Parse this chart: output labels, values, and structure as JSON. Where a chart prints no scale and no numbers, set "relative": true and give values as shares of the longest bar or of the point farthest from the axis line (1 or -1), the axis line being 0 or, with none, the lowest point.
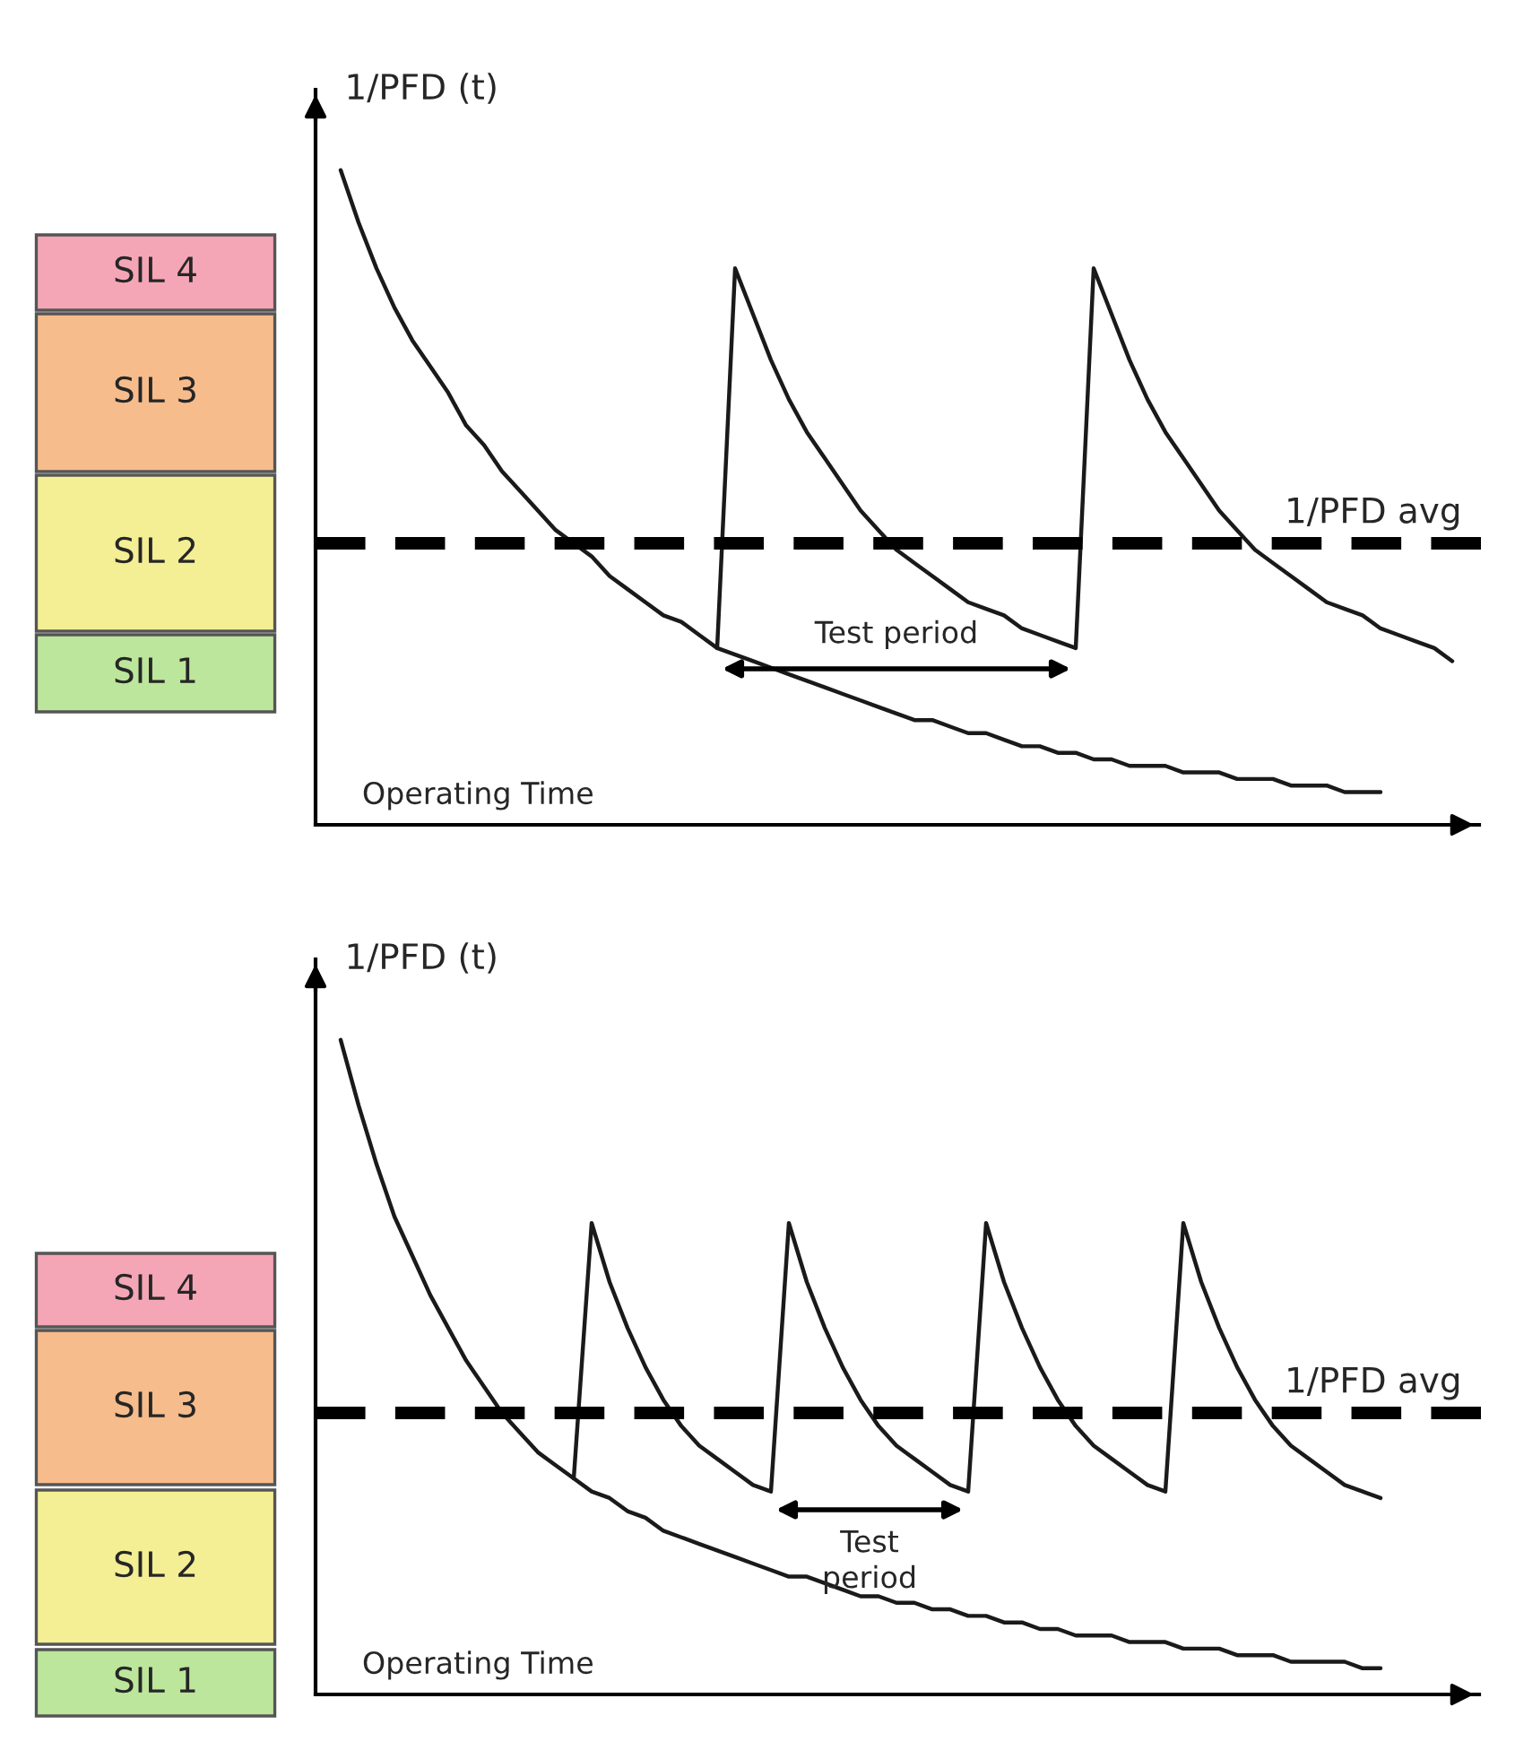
{
  "chart_data": [
    {
      "type": "line",
      "relative": true,
      "xlabel": "Operating Time",
      "ylabel": "1/PFD (t)",
      "categories": [
        null,
        null,
        null,
        null,
        null,
        null,
        null,
        null,
        null,
        null,
        null,
        null,
        null,
        null,
        null,
        null,
        null,
        null,
        null,
        null,
        null,
        null,
        null,
        null,
        null,
        null,
        null,
        null,
        null,
        null,
        null,
        null,
        null,
        null,
        null,
        null,
        null,
        null,
        null,
        null,
        null,
        null,
        null,
        null,
        null,
        null,
        null,
        null,
        null,
        null,
        null,
        null,
        null,
        null,
        null,
        null,
        null,
        null,
        null,
        null,
        null,
        null,
        null
      ],
      "series": [
        {
          "color": "#1a1a1a",
          "values": [
            1.0,
            0.92,
            0.85,
            0.79,
            0.74,
            0.7,
            0.66,
            0.61,
            0.58,
            0.54,
            0.51,
            0.48,
            0.45,
            0.43,
            0.41,
            0.38,
            0.36,
            0.34,
            0.32,
            0.31,
            0.29,
            0.27,
            0.26,
            0.25,
            0.24,
            0.23,
            0.22,
            0.21,
            0.2,
            0.19,
            0.18,
            0.17,
            0.16,
            0.16,
            0.15,
            0.14,
            0.14,
            0.13,
            0.12,
            0.12,
            0.11,
            0.11,
            0.1,
            0.1,
            0.09,
            0.09,
            0.09,
            0.08,
            0.08,
            0.08,
            0.07,
            0.07,
            0.07,
            0.06,
            0.06,
            0.06,
            0.05,
            0.05,
            0.05,
            null,
            null,
            null,
            null
          ]
        },
        {
          "color": "#1a1a1a",
          "values": [
            null,
            null,
            null,
            null,
            null,
            null,
            null,
            null,
            null,
            null,
            null,
            null,
            null,
            null,
            null,
            null,
            null,
            null,
            null,
            null,
            null,
            0.27,
            0.85,
            0.78,
            0.71,
            0.65,
            0.6,
            0.56,
            0.52,
            0.48,
            0.45,
            0.42,
            0.4,
            0.38,
            0.36,
            0.34,
            0.33,
            0.32,
            0.3,
            0.29,
            0.28,
            0.27,
            0.85,
            0.78,
            0.71,
            0.65,
            0.6,
            0.56,
            0.52,
            0.48,
            0.45,
            0.42,
            0.4,
            0.38,
            0.36,
            0.34,
            0.33,
            0.32,
            0.3,
            0.29,
            0.28,
            0.27,
            0.25
          ]
        }
      ],
      "ref_lines": [
        {
          "axis": "y",
          "value": 0.43,
          "label": "1/PFD avg",
          "line_style": "dashed",
          "color": "#000000"
        }
      ],
      "annotations": [
        "Test period",
        "SIL 4",
        "SIL 3",
        "SIL 2",
        "SIL 1"
      ]
    },
    {
      "type": "line",
      "relative": true,
      "xlabel": "Operating Time",
      "ylabel": "1/PFD (t)",
      "categories": [
        null,
        null,
        null,
        null,
        null,
        null,
        null,
        null,
        null,
        null,
        null,
        null,
        null,
        null,
        null,
        null,
        null,
        null,
        null,
        null,
        null,
        null,
        null,
        null,
        null,
        null,
        null,
        null,
        null,
        null,
        null,
        null,
        null,
        null,
        null,
        null,
        null,
        null,
        null,
        null,
        null,
        null,
        null,
        null,
        null,
        null,
        null,
        null,
        null,
        null,
        null,
        null,
        null,
        null,
        null,
        null,
        null,
        null,
        null,
        null,
        null,
        null,
        null
      ],
      "series": [
        {
          "color": "#1a1a1a",
          "values": [
            1.0,
            0.9,
            0.81,
            0.73,
            0.67,
            0.61,
            0.56,
            0.51,
            0.47,
            0.43,
            0.4,
            0.37,
            0.35,
            0.33,
            0.31,
            0.3,
            0.28,
            0.27,
            0.25,
            0.24,
            0.23,
            0.22,
            0.21,
            0.2,
            0.19,
            0.18,
            0.18,
            0.17,
            0.16,
            0.15,
            0.15,
            0.14,
            0.14,
            0.13,
            0.13,
            0.12,
            0.12,
            0.11,
            0.11,
            0.1,
            0.1,
            0.09,
            0.09,
            0.09,
            0.08,
            0.08,
            0.08,
            0.07,
            0.07,
            0.07,
            0.06,
            0.06,
            0.06,
            0.05,
            0.05,
            0.05,
            0.05,
            0.04,
            0.04,
            null,
            null,
            null,
            null
          ]
        },
        {
          "color": "#1a1a1a",
          "values": [
            null,
            null,
            null,
            null,
            null,
            null,
            null,
            null,
            null,
            null,
            null,
            null,
            null,
            0.33,
            0.72,
            0.63,
            0.56,
            0.5,
            0.45,
            0.41,
            0.38,
            0.36,
            0.34,
            0.32,
            0.31,
            0.72,
            0.63,
            0.56,
            0.5,
            0.45,
            0.41,
            0.38,
            0.36,
            0.34,
            0.32,
            0.31,
            0.72,
            0.63,
            0.56,
            0.5,
            0.45,
            0.41,
            0.38,
            0.36,
            0.34,
            0.32,
            0.31,
            0.72,
            0.63,
            0.56,
            0.5,
            0.45,
            0.41,
            0.38,
            0.36,
            0.34,
            0.32,
            0.31,
            0.3,
            null,
            null,
            null,
            null
          ]
        }
      ],
      "ref_lines": [
        {
          "axis": "y",
          "value": 0.43,
          "label": "1/PFD avg",
          "line_style": "dashed",
          "color": "#000000"
        }
      ],
      "annotations": [
        "Test\nperiod",
        "SIL 4",
        "SIL 3",
        "SIL 2",
        "SIL 1"
      ]
    }
  ]
}
